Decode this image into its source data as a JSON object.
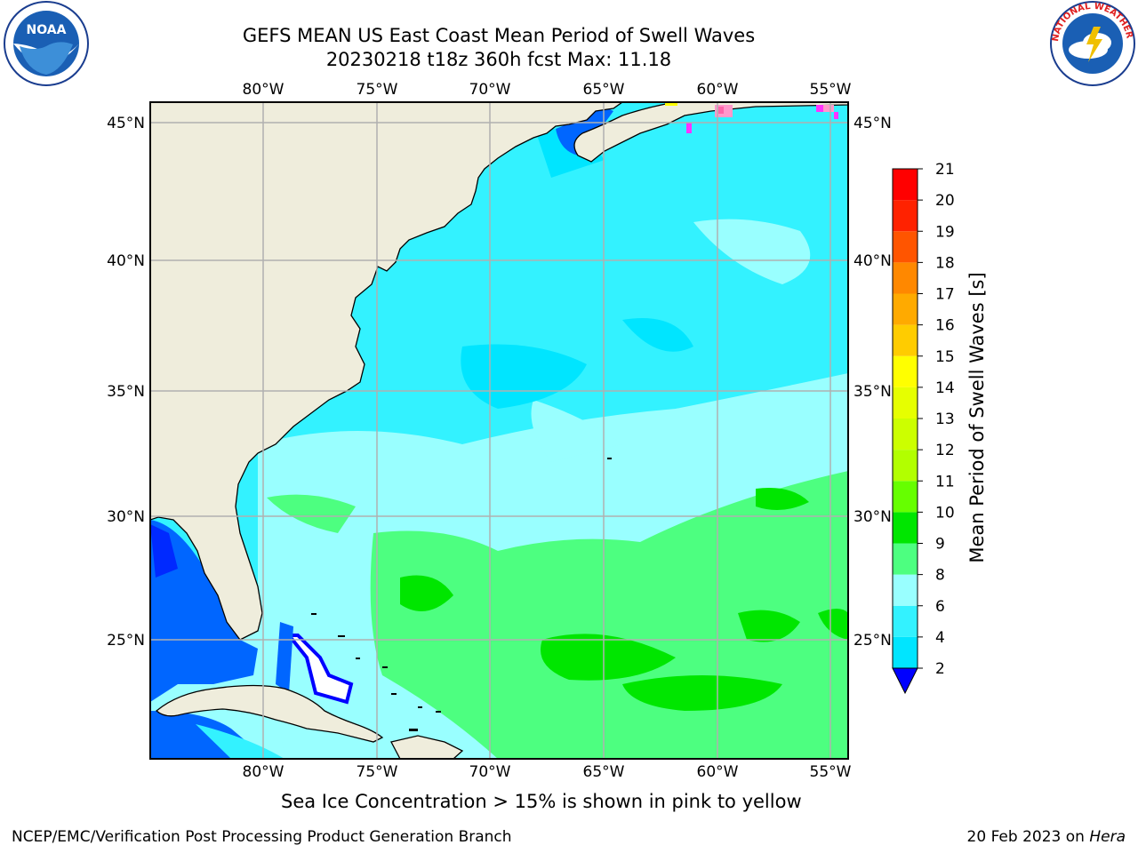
{
  "title": {
    "line1": "GEFS MEAN US East Coast Mean Period of Swell Waves",
    "line2": "20230218 t18z 360h fcst   Max: 11.18"
  },
  "map": {
    "lon_labels": [
      "80°W",
      "75°W",
      "70°W",
      "65°W",
      "60°W",
      "55°W"
    ],
    "lat_labels": [
      "45°N",
      "40°N",
      "35°N",
      "30°N",
      "25°N"
    ],
    "colors": {
      "land": "#efeddc",
      "grid": "#b0b0b0",
      "coast": "#000000"
    }
  },
  "colorbar": {
    "label": "Mean Period of Swell Waves [s]",
    "ticks": [
      "2",
      "4",
      "6",
      "8",
      "9",
      "10",
      "11",
      "12",
      "13",
      "14",
      "15",
      "16",
      "17",
      "18",
      "19",
      "20",
      "21"
    ],
    "colors": [
      "#0066ff",
      "#00e5ff",
      "#33f2ff",
      "#99ffff",
      "#4dff80",
      "#00e600",
      "#66ff00",
      "#b2ff00",
      "#ccff00",
      "#e6ff00",
      "#ffff00",
      "#ffcc00",
      "#ffaa00",
      "#ff8800",
      "#ff5500",
      "#ff2200",
      "#ff0000"
    ],
    "under_color": "#0000ff"
  },
  "caption": "Sea Ice Concentration > 15% is shown in pink to yellow",
  "footer": {
    "left": "NCEP/EMC/Verification Post Processing Product Generation Branch",
    "date": "20 Feb 2023 on",
    "machine": "Hera"
  },
  "logos": {
    "noaa_text": "NOAA",
    "nws_text": "NATIONAL WEATHER SERVICE"
  }
}
